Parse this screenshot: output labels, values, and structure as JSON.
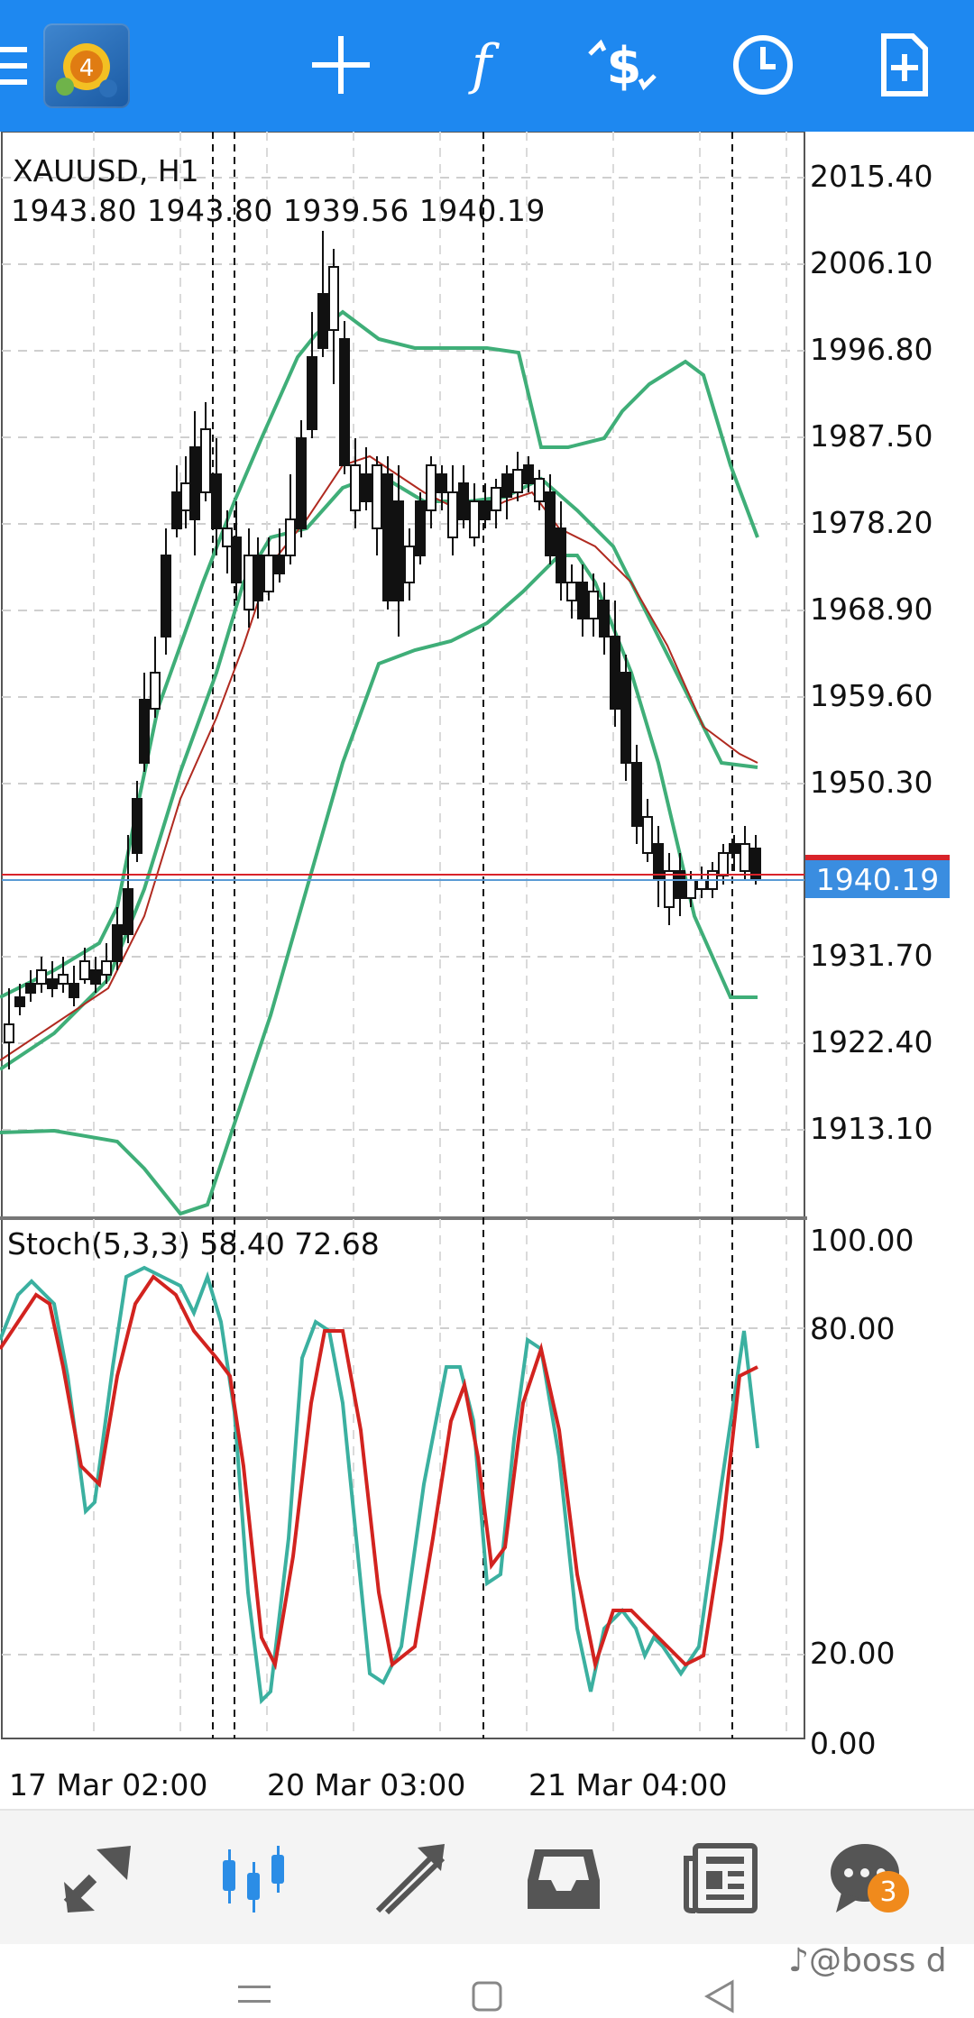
{
  "toolbar": {
    "icons": [
      "menu-icon",
      "app-logo",
      "crosshair-icon",
      "function-icon",
      "trade-icon",
      "clock-icon",
      "new-document-icon"
    ]
  },
  "chart": {
    "symbol_title": "XAUUSD, H1",
    "ohlc": "1943.80 1943.80 1939.56 1940.19",
    "current_price": "1940.19",
    "price_axis": [
      "2015.40",
      "2006.10",
      "1996.80",
      "1987.50",
      "1978.20",
      "1968.90",
      "1959.60",
      "1950.30",
      "1931.70",
      "1922.40",
      "1913.10"
    ],
    "stoch_title": "Stoch(5,3,3) 58.40 72.68",
    "stoch_axis": [
      "100.00",
      "80.00",
      "20.00",
      "0.00"
    ],
    "time_axis": [
      "17 Mar 02:00",
      "20 Mar 03:00",
      "21 Mar 04:00"
    ],
    "colors": {
      "bollinger": "#3fae78",
      "ma": "#b02a20",
      "stoch_main": "#3bb0a0",
      "stoch_signal": "#d2231f",
      "current_price_line": "#d8232a",
      "bid_line": "#5b9bd5",
      "price_tag": "#3a8de0"
    }
  },
  "bottom_nav": {
    "items": [
      "quotes-icon",
      "chart-icon",
      "trade-icon",
      "history-icon",
      "news-icon",
      "chat-icon"
    ],
    "chat_badge": "3"
  },
  "watermark": "♪@boss d"
}
